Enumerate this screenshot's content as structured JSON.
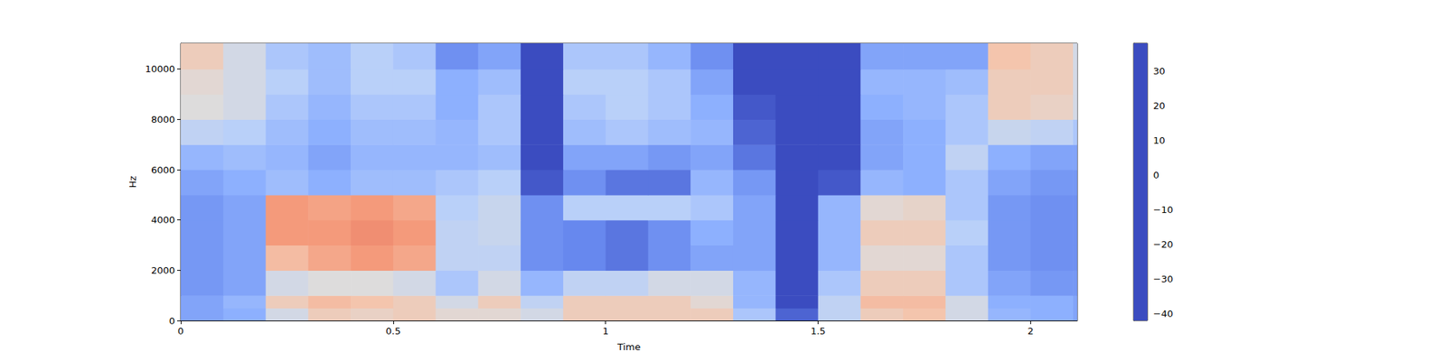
{
  "chart_data": {
    "type": "heatmap",
    "x_label": "Time",
    "y_label": "Hz",
    "xlim": [
      0,
      2.11
    ],
    "xticks": [
      0,
      0.5,
      1,
      1.5,
      2
    ],
    "ylim": [
      0,
      11025
    ],
    "yticks": [
      0,
      2000,
      4000,
      6000,
      8000,
      10000
    ],
    "x_edges": [
      0,
      0.1,
      0.2,
      0.3,
      0.4,
      0.5,
      0.6,
      0.7,
      0.8,
      0.9,
      1.0,
      1.1,
      1.2,
      1.3,
      1.4,
      1.5,
      1.6,
      1.7,
      1.8,
      1.9,
      2.0,
      2.1,
      2.11
    ],
    "y_edges": [
      0,
      500,
      1000,
      2000,
      3000,
      4000,
      5000,
      6000,
      7000,
      8000,
      9000,
      10000,
      11025
    ],
    "z": [
      [
        -25,
        -22,
        -5,
        5,
        3,
        5,
        0,
        0,
        -5,
        5,
        5,
        5,
        5,
        -15,
        -38,
        -10,
        5,
        8,
        -5,
        -20,
        -22,
        -25
      ],
      [
        -25,
        -20,
        5,
        10,
        8,
        5,
        -5,
        5,
        -10,
        5,
        5,
        5,
        0,
        -20,
        -42,
        -10,
        10,
        10,
        -5,
        -22,
        -22,
        -25
      ],
      [
        -28,
        -25,
        -5,
        -2,
        -2,
        -5,
        -15,
        -5,
        -20,
        -10,
        -10,
        -5,
        -5,
        -20,
        -42,
        -15,
        5,
        5,
        -15,
        -25,
        -28,
        -28
      ],
      [
        -28,
        -25,
        10,
        15,
        18,
        15,
        -10,
        -10,
        -30,
        -32,
        -35,
        -30,
        -25,
        -25,
        -42,
        -20,
        0,
        0,
        -15,
        -28,
        -30,
        -30
      ],
      [
        -28,
        -25,
        18,
        18,
        20,
        18,
        -10,
        -8,
        -30,
        -32,
        -35,
        -30,
        -22,
        -25,
        -42,
        -20,
        5,
        5,
        -12,
        -28,
        -30,
        -30
      ],
      [
        -28,
        -25,
        18,
        16,
        18,
        15,
        -12,
        -8,
        -30,
        -12,
        -12,
        -12,
        -15,
        -25,
        -42,
        -20,
        0,
        2,
        -15,
        -28,
        -30,
        -30
      ],
      [
        -25,
        -22,
        -18,
        -22,
        -18,
        -18,
        -15,
        -12,
        -40,
        -30,
        -35,
        -35,
        -20,
        -28,
        -42,
        -40,
        -20,
        -22,
        -15,
        -25,
        -28,
        -28
      ],
      [
        -20,
        -18,
        -20,
        -25,
        -20,
        -20,
        -20,
        -18,
        -42,
        -25,
        -25,
        -28,
        -25,
        -35,
        -42,
        -42,
        -25,
        -22,
        -10,
        -22,
        -25,
        -25
      ],
      [
        -10,
        -12,
        -18,
        -22,
        -18,
        -18,
        -20,
        -15,
        -42,
        -18,
        -15,
        -18,
        -20,
        -38,
        -42,
        -42,
        -25,
        -22,
        -15,
        -8,
        -10,
        -15
      ],
      [
        -2,
        -5,
        -15,
        -20,
        -15,
        -15,
        -22,
        -15,
        -42,
        -15,
        -12,
        -15,
        -22,
        -40,
        -42,
        -42,
        -22,
        -20,
        -15,
        5,
        3,
        -5
      ],
      [
        0,
        -5,
        -12,
        -18,
        -12,
        -12,
        -22,
        -18,
        -42,
        -12,
        -12,
        -15,
        -25,
        -42,
        -42,
        -42,
        -20,
        -20,
        -18,
        5,
        5,
        -5
      ],
      [
        5,
        -5,
        -15,
        -18,
        -12,
        -15,
        -30,
        -25,
        -42,
        -15,
        -15,
        -20,
        -30,
        -42,
        -42,
        -42,
        -25,
        -25,
        -25,
        8,
        5,
        -5
      ]
    ],
    "colorbar": {
      "range": [
        -42,
        38
      ],
      "ticks": [
        {
          "value": -40,
          "label": "−40"
        },
        {
          "value": -30,
          "label": "−30"
        },
        {
          "value": -20,
          "label": "−20"
        },
        {
          "value": -10,
          "label": "−10"
        },
        0,
        10,
        20,
        30
      ]
    }
  }
}
